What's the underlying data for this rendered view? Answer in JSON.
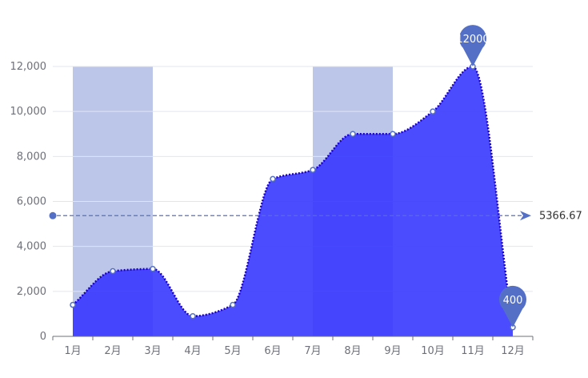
{
  "chart_data": {
    "type": "area",
    "categories": [
      "1月",
      "2月",
      "3月",
      "4月",
      "5月",
      "6月",
      "7月",
      "8月",
      "9月",
      "10月",
      "11月",
      "12月"
    ],
    "series": [
      {
        "values": [
          1400,
          2900,
          3000,
          900,
          1400,
          7000,
          7400,
          9000,
          9000,
          10000,
          12000,
          400
        ]
      }
    ],
    "ylim": [
      0,
      12000
    ],
    "y_ticks": [
      0,
      2000,
      4000,
      6000,
      8000,
      10000,
      12000
    ],
    "y_tick_labels": [
      "0",
      "2,000",
      "4,000",
      "6,000",
      "8,000",
      "10,000",
      "12,000"
    ],
    "shaded_bands": [
      {
        "from": "1月",
        "to": "3月"
      },
      {
        "from": "7月",
        "to": "9月"
      }
    ],
    "mark_points": [
      {
        "category": "11月",
        "value": 12000,
        "label": "12000"
      },
      {
        "category": "12月",
        "value": 400,
        "label": "400"
      }
    ],
    "average_line": {
      "value": 5366.67,
      "label": "5366.67"
    },
    "grid": true,
    "smooth": true,
    "colors": {
      "area_fill": "#3333ff",
      "line": "#1a00cc",
      "band": "#bcc6e8",
      "marker": "#5470c6",
      "axis": "#6e7079",
      "grid": "#e0e6f1",
      "label": "#6e7079"
    }
  }
}
